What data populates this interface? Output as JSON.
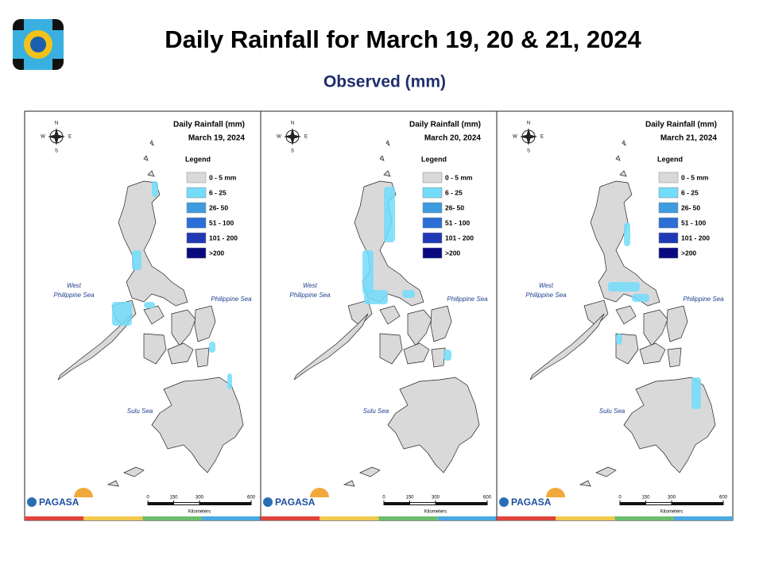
{
  "header": {
    "title": "Daily Rainfall for March 19, 20 & 21, 2024",
    "subtitle": "Observed (mm)"
  },
  "map": {
    "heading": "Daily Rainfall (mm)",
    "legend_title": "Legend",
    "legend": [
      {
        "label": "0 - 5 mm",
        "color": "#d9d9d9"
      },
      {
        "label": "6 - 25",
        "color": "#73dcfa"
      },
      {
        "label": "26- 50",
        "color": "#3f9be0"
      },
      {
        "label": "51 - 100",
        "color": "#2b6fd6"
      },
      {
        "label": "101 - 200",
        "color": "#2138b5"
      },
      {
        "label": ">200",
        "color": "#0a0a80"
      }
    ],
    "west_sea": [
      "West",
      "Philippine Sea"
    ],
    "east_sea": "Philippine Sea",
    "south_sea": "Sulu Sea",
    "compass": {
      "n": "N",
      "e": "E",
      "s": "S",
      "w": "W"
    },
    "scale": {
      "ticks": [
        0,
        150,
        300,
        600
      ],
      "unit": "Kilometers"
    },
    "logo": "PAGASA"
  },
  "panels": [
    {
      "date": "March 19, 2024"
    },
    {
      "date": "March 20, 2024"
    },
    {
      "date": "March 21, 2024"
    }
  ]
}
